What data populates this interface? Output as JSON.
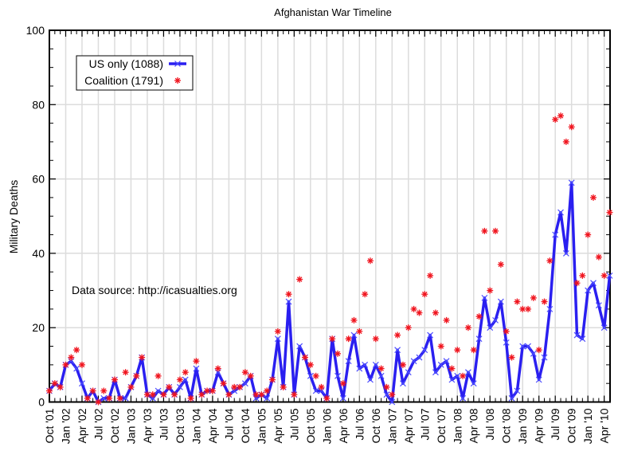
{
  "chart_data": {
    "type": "line",
    "title": "Afghanistan War Timeline",
    "xlabel": "",
    "ylabel": "Military Deaths",
    "ylim": [
      0,
      100
    ],
    "yticks": [
      0,
      20,
      40,
      60,
      80,
      100
    ],
    "y_minor_step": 5,
    "grid": true,
    "x_start_month": "Oct 2001",
    "x_tick_labels": [
      "Oct '01",
      "Jan '02",
      "Apr '02",
      "Jul '02",
      "Oct '02",
      "Jan '03",
      "Apr '03",
      "Jul '03",
      "Oct '03",
      "Jan '04",
      "Apr '04",
      "Jul '04",
      "Oct '04",
      "Jan '05",
      "Apr '05",
      "Jul '05",
      "Oct '05",
      "Jan '06",
      "Apr '06",
      "Jul '06",
      "Oct '06",
      "Jan '07",
      "Apr '07",
      "Jul '07",
      "Oct '07",
      "Jan '08",
      "Apr '08",
      "Jul '08",
      "Oct '08",
      "Jan '09",
      "Apr '09",
      "Jul '09",
      "Oct '09",
      "Jan '10",
      "Apr '10"
    ],
    "x_tick_step_months": 3,
    "x_range_months": [
      0,
      103
    ],
    "legend_position": "top-left",
    "annotation": "Data source: http://icasualties.org",
    "series": [
      {
        "name": "US only (1088)",
        "style": "line+x",
        "color": "#2a1ff0",
        "values": [
          3,
          5,
          4,
          10,
          11,
          9,
          5,
          1,
          3,
          0,
          1,
          1,
          6,
          1,
          1,
          4,
          7,
          12,
          2,
          1,
          3,
          2,
          4,
          2,
          4,
          6,
          1,
          9,
          2,
          3,
          3,
          8,
          5,
          2,
          3,
          4,
          5,
          7,
          1,
          2,
          1,
          6,
          17,
          4,
          27,
          2,
          15,
          12,
          7,
          3,
          3,
          1,
          17,
          7,
          1,
          11,
          18,
          9,
          10,
          6,
          10,
          7,
          2,
          0,
          14,
          5,
          8,
          11,
          12,
          14,
          18,
          8,
          10,
          11,
          6,
          7,
          1,
          8,
          5,
          17,
          28,
          20,
          22,
          27,
          16,
          1,
          3,
          15,
          15,
          13,
          6,
          12,
          25,
          45,
          51,
          40,
          59,
          18,
          17,
          30,
          32,
          26,
          20,
          34
        ]
      },
      {
        "name": "Coalition (1791)",
        "style": "points-star",
        "color": "#f0141e",
        "values": [
          3,
          5,
          4,
          10,
          12,
          14,
          10,
          1,
          3,
          0,
          3,
          1,
          6,
          1,
          8,
          4,
          7,
          12,
          2,
          2,
          7,
          2,
          4,
          2,
          6,
          8,
          1,
          11,
          2,
          3,
          3,
          9,
          5,
          2,
          4,
          4,
          8,
          7,
          2,
          2,
          3,
          6,
          19,
          4,
          29,
          2,
          33,
          12,
          10,
          7,
          4,
          1,
          17,
          13,
          5,
          17,
          22,
          19,
          29,
          38,
          17,
          9,
          4,
          2,
          18,
          10,
          20,
          25,
          24,
          29,
          34,
          24,
          15,
          22,
          9,
          14,
          7,
          20,
          14,
          23,
          46,
          30,
          46,
          37,
          19,
          12,
          27,
          25,
          25,
          28,
          14,
          27,
          38,
          76,
          77,
          70,
          74,
          32,
          34,
          45,
          55,
          39,
          34,
          51
        ]
      }
    ]
  }
}
